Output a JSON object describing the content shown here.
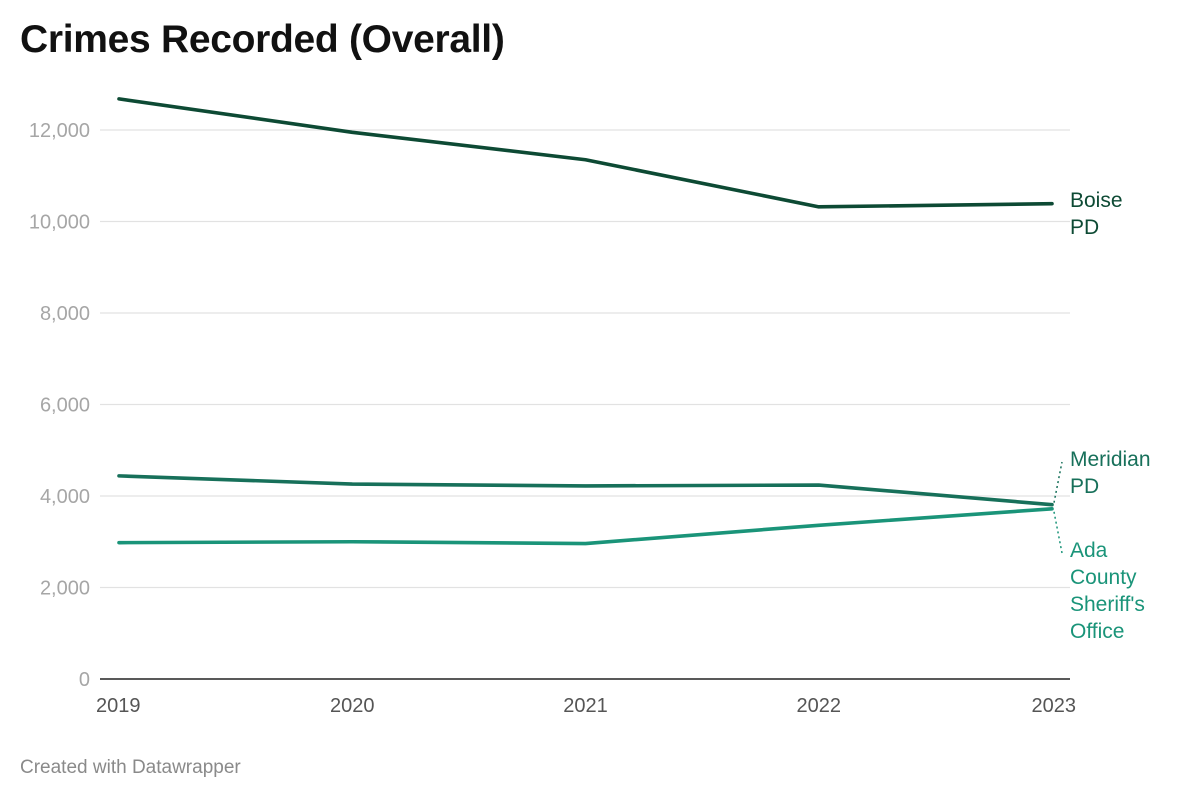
{
  "title": "Crimes Recorded (Overall)",
  "footer": "Created with Datawrapper",
  "chart_data": {
    "type": "line",
    "title": "Crimes Recorded (Overall)",
    "xlabel": "",
    "ylabel": "",
    "x": [
      "2019",
      "2020",
      "2021",
      "2022",
      "2023"
    ],
    "ylim": [
      0,
      13000
    ],
    "yticks": [
      0,
      2000,
      4000,
      6000,
      8000,
      10000,
      12000
    ],
    "ytick_labels": [
      "0",
      "2,000",
      "4,000",
      "6,000",
      "8,000",
      "10,000",
      "12,000"
    ],
    "grid": true,
    "legend": "direct labels at line ends (right)",
    "series": [
      {
        "name": "Boise PD",
        "label_lines": [
          "Boise",
          "PD"
        ],
        "color": "#0d4a34",
        "values": [
          12680,
          11950,
          11350,
          10320,
          10390
        ]
      },
      {
        "name": "Meridian PD",
        "label_lines": [
          "Meridian",
          "PD"
        ],
        "color": "#17705a",
        "values": [
          4440,
          4260,
          4220,
          4240,
          3810
        ]
      },
      {
        "name": "Ada County Sheriff's Office",
        "label_lines": [
          "Ada",
          "County",
          "Sheriff's",
          "Office"
        ],
        "color": "#1a9479",
        "values": [
          2980,
          3000,
          2960,
          3360,
          3720
        ]
      }
    ]
  }
}
